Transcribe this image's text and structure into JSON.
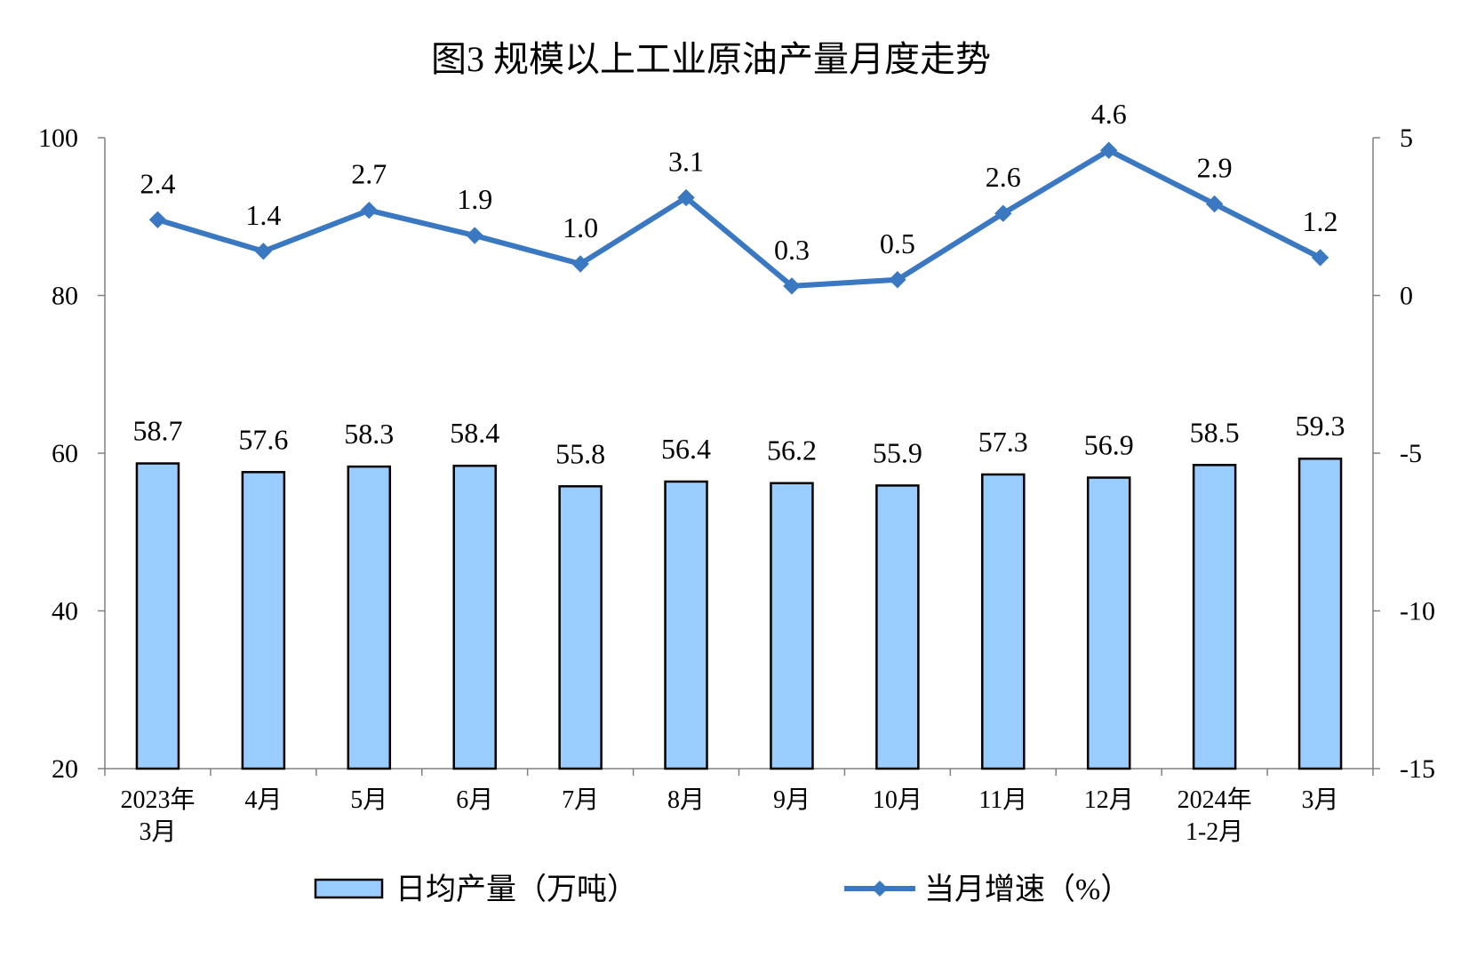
{
  "chart_data": {
    "type": "bar",
    "title": "图3 规模以上工业原油产量月度走势",
    "categories": [
      [
        "2023年",
        "3月"
      ],
      [
        "4月"
      ],
      [
        "5月"
      ],
      [
        "6月"
      ],
      [
        "7月"
      ],
      [
        "8月"
      ],
      [
        "9月"
      ],
      [
        "10月"
      ],
      [
        "11月"
      ],
      [
        "12月"
      ],
      [
        "2024年",
        "1-2月"
      ],
      [
        "3月"
      ]
    ],
    "series": [
      {
        "name": "日均产量（万吨）",
        "type": "bar",
        "axis": "left",
        "color": "#99ccff",
        "values": [
          58.7,
          57.6,
          58.3,
          58.4,
          55.8,
          56.4,
          56.2,
          55.9,
          57.3,
          56.9,
          58.5,
          59.3
        ],
        "labels": [
          "58.7",
          "57.6",
          "58.3",
          "58.4",
          "55.8",
          "56.4",
          "56.2",
          "55.9",
          "57.3",
          "56.9",
          "58.5",
          "59.3"
        ]
      },
      {
        "name": "当月增速（%）",
        "type": "line",
        "axis": "right",
        "color": "#3a78c2",
        "marker": "diamond",
        "values": [
          2.4,
          1.4,
          2.7,
          1.9,
          1.0,
          3.1,
          0.3,
          0.5,
          2.6,
          4.6,
          2.9,
          1.2
        ],
        "labels": [
          "2.4",
          "1.4",
          "2.7",
          "1.9",
          "1.0",
          "3.1",
          "0.3",
          "0.5",
          "2.6",
          "4.6",
          "2.9",
          "1.2"
        ]
      }
    ],
    "y_left": {
      "min": 20,
      "max": 100,
      "ticks": [
        "20",
        "40",
        "60",
        "80",
        "100"
      ]
    },
    "y_right": {
      "min": -15,
      "max": 5,
      "ticks": [
        "-15",
        "-10",
        "-5",
        "0",
        "5"
      ]
    },
    "grid": false,
    "legend": "bottom-center"
  }
}
